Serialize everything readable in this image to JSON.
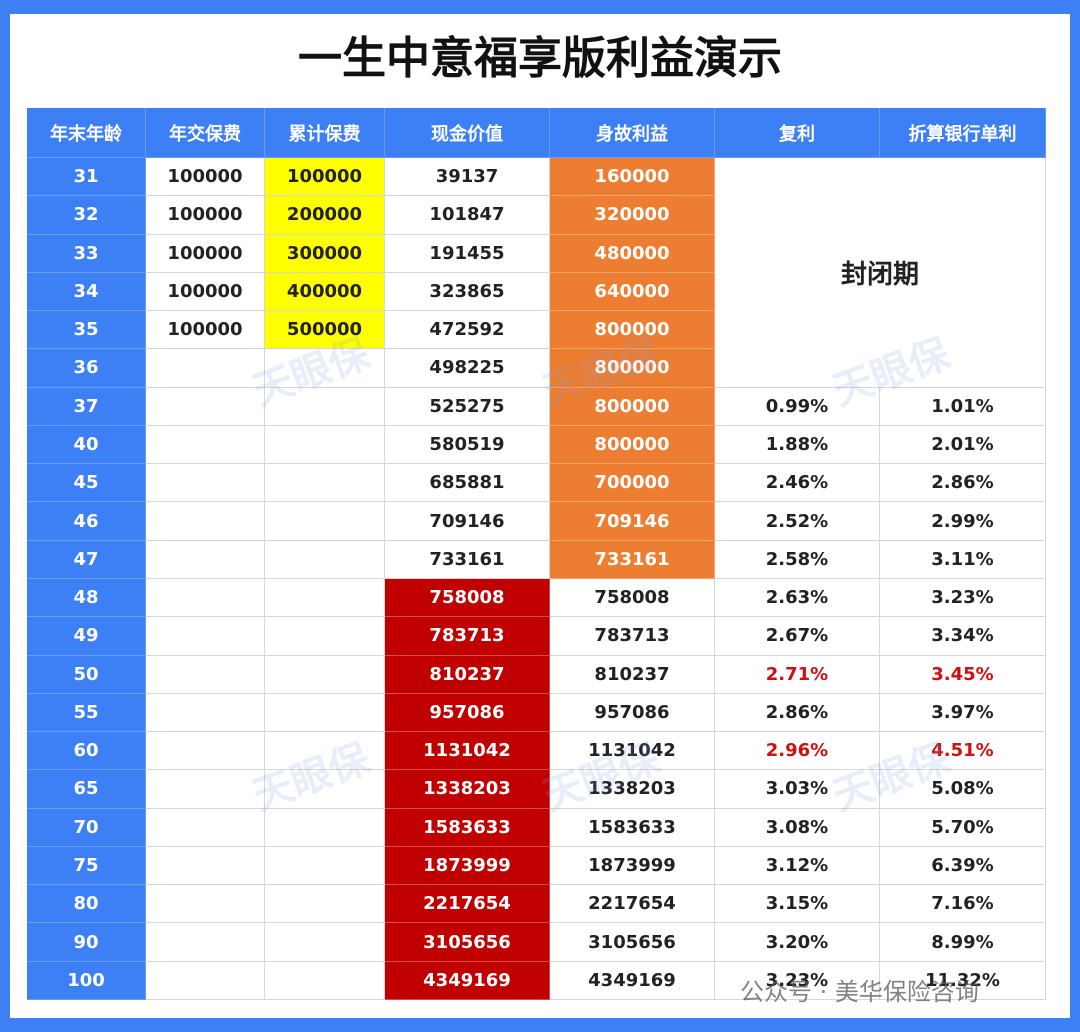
{
  "title": "一生中意福享版利益演示",
  "table": {
    "header": [
      "年末年龄",
      "年交保费",
      "累计保费",
      "现金价值",
      "身故利益",
      "复利",
      "折算银行单利"
    ],
    "closed_label": "封闭期",
    "rows": [
      [
        "31",
        "100000",
        "100000",
        "39137",
        "160000",
        null,
        null
      ],
      [
        "32",
        "100000",
        "200000",
        "101847",
        "320000",
        null,
        null
      ],
      [
        "33",
        "100000",
        "300000",
        "191455",
        "480000",
        null,
        null
      ],
      [
        "34",
        "100000",
        "400000",
        "323865",
        "640000",
        null,
        null
      ],
      [
        "35",
        "100000",
        "500000",
        "472592",
        "800000",
        null,
        null
      ],
      [
        "36",
        null,
        null,
        "498225",
        "800000",
        null,
        null
      ],
      [
        "37",
        null,
        null,
        "525275",
        "800000",
        "0.99%",
        "1.01%"
      ],
      [
        "40",
        null,
        null,
        "580519",
        "800000",
        "1.88%",
        "2.01%"
      ],
      [
        "45",
        null,
        null,
        "685881",
        "700000",
        "2.46%",
        "2.86%"
      ],
      [
        "46",
        null,
        null,
        "709146",
        "709146",
        "2.52%",
        "2.99%"
      ],
      [
        "47",
        null,
        null,
        "733161",
        "733161",
        "2.58%",
        "3.11%"
      ],
      [
        "48",
        null,
        null,
        "758008",
        "758008",
        "2.63%",
        "3.23%"
      ],
      [
        "49",
        null,
        null,
        "783713",
        "783713",
        "2.67%",
        "3.34%"
      ],
      [
        "50",
        null,
        null,
        "810237",
        "810237",
        "2.71%",
        "3.45%"
      ],
      [
        "55",
        null,
        null,
        "957086",
        "957086",
        "2.86%",
        "3.97%"
      ],
      [
        "60",
        null,
        null,
        "1131042",
        "1131042",
        "2.96%",
        "4.51%"
      ],
      [
        "65",
        null,
        null,
        "1338203",
        "1338203",
        "3.03%",
        "5.08%"
      ],
      [
        "70",
        null,
        null,
        "1583633",
        "1583633",
        "3.08%",
        "5.70%"
      ],
      [
        "75",
        null,
        null,
        "1873999",
        "1873999",
        "3.12%",
        "6.39%"
      ],
      [
        "80",
        null,
        null,
        "2217654",
        "2217654",
        "3.15%",
        "7.16%"
      ],
      [
        "90",
        null,
        null,
        "3105656",
        "3105656",
        "3.20%",
        "8.99%"
      ],
      [
        "100",
        null,
        null,
        "4349169",
        "4349169",
        "3.23%",
        "11.32%"
      ]
    ]
  },
  "watermark": "天眼保",
  "footer": "公众号 · 美华保险咨询"
}
